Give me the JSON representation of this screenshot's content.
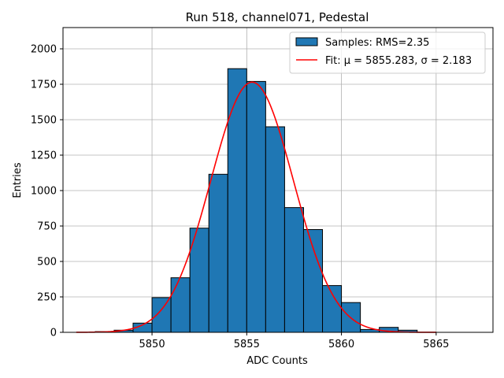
{
  "chart_data": {
    "type": "bar",
    "title": "Run 518, channel071, Pedestal",
    "xlabel": "ADC Counts",
    "ylabel": "Entries",
    "xlim": [
      5845.3,
      5868.0
    ],
    "ylim": [
      0,
      2150
    ],
    "grid": true,
    "legend_position": "top-right",
    "xticks": [
      5850,
      5855,
      5860,
      5865
    ],
    "yticks": [
      0,
      250,
      500,
      750,
      1000,
      1250,
      1500,
      1750,
      2000
    ],
    "histogram": {
      "name": "Samples: RMS=2.35",
      "color": "#1f77b4",
      "edge_color": "#000000",
      "bin_width": 1,
      "bins": [
        {
          "x0": 5846,
          "value": 0
        },
        {
          "x0": 5847,
          "value": 5
        },
        {
          "x0": 5848,
          "value": 15
        },
        {
          "x0": 5849,
          "value": 65
        },
        {
          "x0": 5850,
          "value": 245
        },
        {
          "x0": 5851,
          "value": 385
        },
        {
          "x0": 5852,
          "value": 735
        },
        {
          "x0": 5853,
          "value": 1115
        },
        {
          "x0": 5854,
          "value": 1860
        },
        {
          "x0": 5855,
          "value": 1770
        },
        {
          "x0": 5856,
          "value": 1450
        },
        {
          "x0": 5857,
          "value": 880
        },
        {
          "x0": 5858,
          "value": 725
        },
        {
          "x0": 5859,
          "value": 330
        },
        {
          "x0": 5860,
          "value": 210
        },
        {
          "x0": 5861,
          "value": 20
        },
        {
          "x0": 5862,
          "value": 35
        },
        {
          "x0": 5863,
          "value": 15
        },
        {
          "x0": 5864,
          "value": 0
        },
        {
          "x0": 5865,
          "value": 0
        },
        {
          "x0": 5866,
          "value": 0
        }
      ]
    },
    "fit": {
      "name": "Fit: μ = 5855.283, σ = 2.183",
      "color": "#ff0000",
      "mu": 5855.283,
      "sigma": 2.183,
      "amplitude": 1765,
      "x_range": [
        5846,
        5865
      ]
    }
  }
}
